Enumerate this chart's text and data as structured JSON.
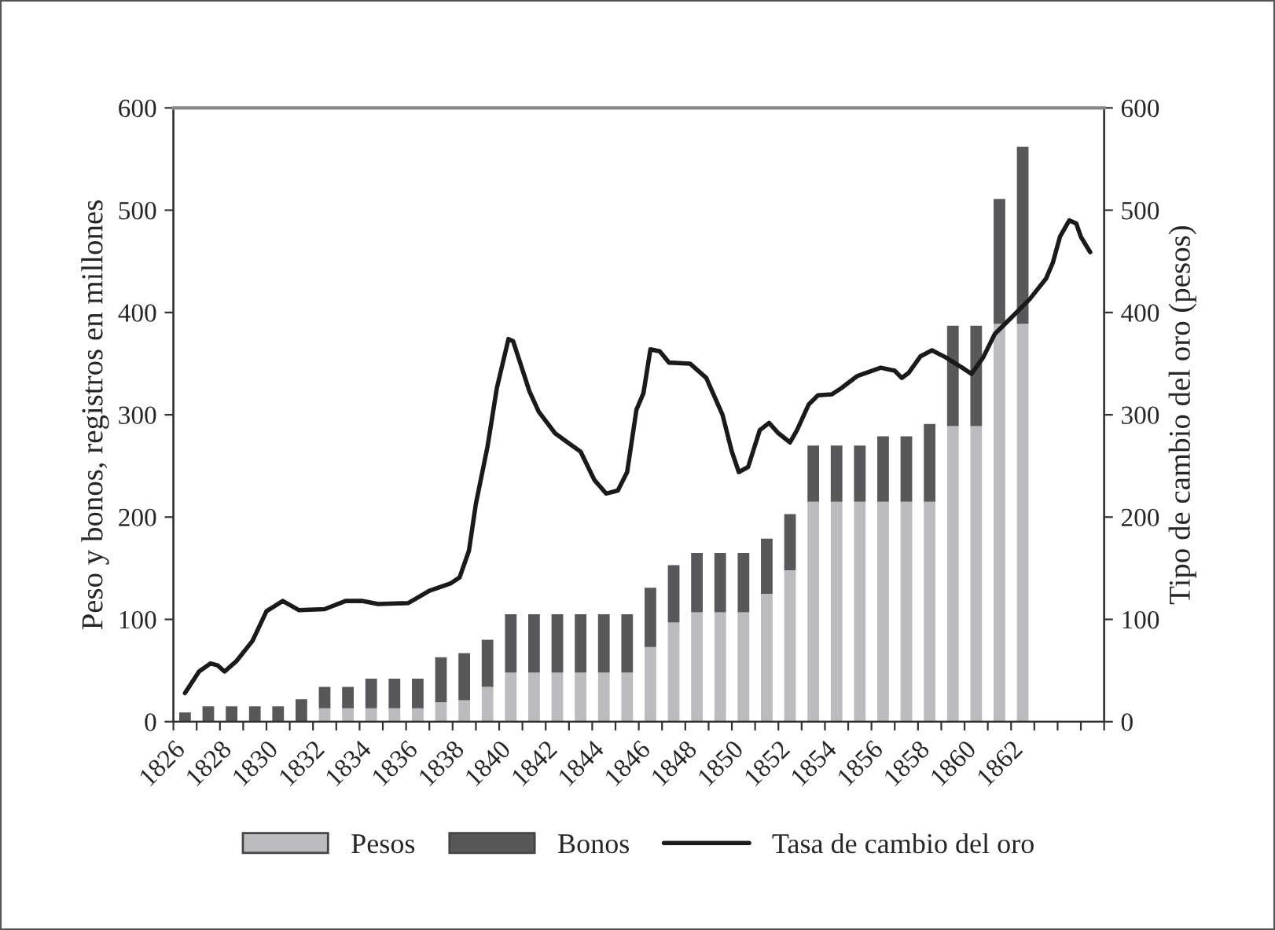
{
  "chart_data": {
    "type": "bar",
    "stacked": true,
    "ylabel": "Peso y bonos, registros en millones",
    "y2label": "Tipo de cambio del oro (pesos)",
    "x": [
      1826.5,
      1827.5,
      1828.5,
      1829.5,
      1830.5,
      1831.5,
      1832.5,
      1833.5,
      1834.5,
      1835.5,
      1836.5,
      1837.5,
      1838.5,
      1839.5,
      1840.5,
      1841.5,
      1842.5,
      1843.5,
      1844.5,
      1845.5,
      1846.5,
      1847.5,
      1848.5,
      1849.5,
      1850.5,
      1851.5,
      1852.5,
      1853.5,
      1854.5,
      1855.5,
      1856.5,
      1857.5,
      1858.5,
      1859.5,
      1860.5,
      1861.5,
      1862.5
    ],
    "series": [
      {
        "name": "Pesos",
        "color": "#bcbcc0",
        "values": [
          0,
          0,
          0,
          0,
          0,
          0,
          13,
          13,
          13,
          13,
          13,
          19,
          21,
          34,
          48,
          48,
          48,
          48,
          48,
          48,
          73,
          97,
          107,
          107,
          107,
          125,
          148,
          215,
          215,
          215,
          215,
          215,
          215,
          289,
          289,
          389,
          389
        ]
      },
      {
        "name": "Bonos",
        "color": "#58585a",
        "values": [
          9,
          15,
          15,
          15,
          15,
          22,
          21,
          21,
          29,
          29,
          29,
          44,
          46,
          46,
          57,
          57,
          57,
          57,
          57,
          57,
          58,
          56,
          58,
          58,
          58,
          54,
          55,
          55,
          55,
          55,
          64,
          64,
          76,
          98,
          98,
          122,
          173
        ]
      },
      {
        "name": "Tasa de cambio del oro",
        "type": "line",
        "axis": "y2",
        "color": "#1a1a1a",
        "x": [
          1826.5,
          1827.1,
          1827.6,
          1827.9,
          1828.2,
          1828.7,
          1829.4,
          1830.0,
          1830.7,
          1831.4,
          1832.5,
          1833.4,
          1834.1,
          1834.8,
          1836.1,
          1837.0,
          1837.9,
          1838.3,
          1838.7,
          1839.0,
          1839.5,
          1839.9,
          1840.4,
          1840.6,
          1840.9,
          1841.3,
          1841.7,
          1842.4,
          1843.0,
          1843.5,
          1844.1,
          1844.6,
          1845.1,
          1845.5,
          1845.9,
          1846.2,
          1846.5,
          1846.9,
          1847.3,
          1848.2,
          1848.9,
          1849.6,
          1850.0,
          1850.3,
          1850.7,
          1851.2,
          1851.6,
          1852.0,
          1852.5,
          1852.8,
          1853.3,
          1853.7,
          1854.3,
          1854.7,
          1855.4,
          1856.4,
          1857.0,
          1857.3,
          1857.6,
          1858.1,
          1858.6,
          1859.2,
          1859.9,
          1860.3,
          1860.8,
          1861.3,
          1862.1,
          1862.8,
          1863.5,
          1863.8,
          1864.1,
          1864.5,
          1864.8,
          1865.0,
          1865.4
        ],
        "values": [
          28,
          49,
          57,
          55,
          49,
          59,
          79,
          108,
          118,
          109,
          110,
          118,
          118,
          115,
          116,
          128,
          135,
          141,
          167,
          213,
          269,
          326,
          374,
          372,
          351,
          323,
          303,
          282,
          272,
          264,
          236,
          223,
          226,
          244,
          305,
          321,
          364,
          362,
          351,
          350,
          336,
          300,
          264,
          244,
          249,
          285,
          292,
          282,
          273,
          285,
          310,
          319,
          320,
          326,
          338,
          346,
          343,
          336,
          341,
          357,
          363,
          356,
          346,
          340,
          356,
          379,
          397,
          413,
          433,
          449,
          474,
          490,
          487,
          474,
          459
        ]
      }
    ],
    "xlim": [
      1826,
      1866
    ],
    "xticks": [
      1826,
      {
        "value": 1827,
        "label": null
      },
      1828,
      {
        "value": 1829,
        "label": null
      },
      1830,
      {
        "value": 1831,
        "label": null
      },
      1832,
      {
        "value": 1833,
        "label": null
      },
      1834,
      {
        "value": 1835,
        "label": null
      },
      1836,
      {
        "value": 1837,
        "label": null
      },
      1838,
      {
        "value": 1839,
        "label": null
      },
      1840,
      {
        "value": 1841,
        "label": null
      },
      1842,
      {
        "value": 1843,
        "label": null
      },
      1844,
      {
        "value": 1845,
        "label": null
      },
      1846,
      {
        "value": 1847,
        "label": null
      },
      1848,
      {
        "value": 1849,
        "label": null
      },
      1850,
      {
        "value": 1851,
        "label": null
      },
      1852,
      {
        "value": 1853,
        "label": null
      },
      1854,
      {
        "value": 1855,
        "label": null
      },
      1856,
      {
        "value": 1857,
        "label": null
      },
      1858,
      {
        "value": 1859,
        "label": null
      },
      1860,
      {
        "value": 1861,
        "label": null
      },
      1862,
      {
        "value": 1863,
        "label": null
      },
      {
        "value": 1864,
        "label": null
      },
      {
        "value": 1865,
        "label": null
      },
      {
        "value": 1866,
        "label": null
      }
    ],
    "ylim": [
      0,
      600
    ],
    "yticks": [
      0,
      100,
      200,
      300,
      400,
      500,
      600
    ],
    "y2lim": [
      0,
      600
    ],
    "y2ticks": [
      0,
      100,
      200,
      300,
      400,
      500,
      600
    ],
    "grid": false,
    "legend": "bottom",
    "line_style": "solid",
    "marker": "none"
  }
}
